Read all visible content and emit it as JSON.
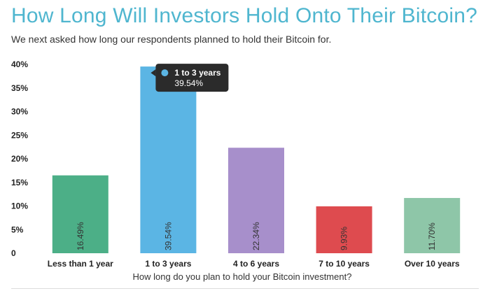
{
  "header": {
    "title": "How Long Will Investors Hold Onto Their Bitcoin?",
    "subtitle": "We next asked how long our respondents planned to hold their Bitcoin for."
  },
  "chart_data": {
    "type": "bar",
    "categories": [
      "Less than 1 year",
      "1 to 3 years",
      "4 to 6 years",
      "7 to 10 years",
      "Over 10 years"
    ],
    "values": [
      16.49,
      39.54,
      22.34,
      9.93,
      11.7
    ],
    "value_labels": [
      "16.49%",
      "39.54%",
      "22.34%",
      "9.93%",
      "11.70%"
    ],
    "colors": [
      "#4caf87",
      "#5bb5e4",
      "#a78fcb",
      "#de4b4f",
      "#8ec6a8"
    ],
    "xlabel": "How long do you plan to hold your Bitcoin investment?",
    "ylabel": "",
    "ylim": [
      0,
      40
    ],
    "yticks": [
      0,
      5,
      10,
      15,
      20,
      25,
      30,
      35,
      40
    ],
    "ytick_labels": [
      "0",
      "5%",
      "10%",
      "15%",
      "20%",
      "25%",
      "30%",
      "35%",
      "40%"
    ],
    "grid": false,
    "tooltip": {
      "category_index": 1,
      "title": "1 to 3 years",
      "value": "39.54%",
      "marker_color": "#5bb5e4"
    }
  }
}
